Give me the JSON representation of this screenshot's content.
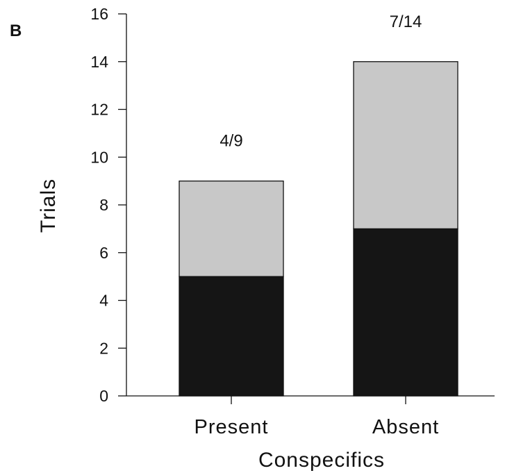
{
  "panel_label": "B",
  "chart_data": {
    "type": "bar",
    "stacked": true,
    "title": "",
    "xlabel": "Conspecifics",
    "ylabel": "Trials",
    "categories": [
      "Present",
      "Absent"
    ],
    "series": [
      {
        "values": [
          5,
          7
        ],
        "color": "#151515"
      },
      {
        "values": [
          4,
          7
        ],
        "color": "#c8c8c8"
      }
    ],
    "annotations": [
      "4/9",
      "7/14"
    ],
    "ylim": [
      0,
      16
    ],
    "yticks": [
      0,
      2,
      4,
      6,
      8,
      10,
      12,
      14,
      16
    ],
    "grid": false,
    "legend": "none"
  }
}
